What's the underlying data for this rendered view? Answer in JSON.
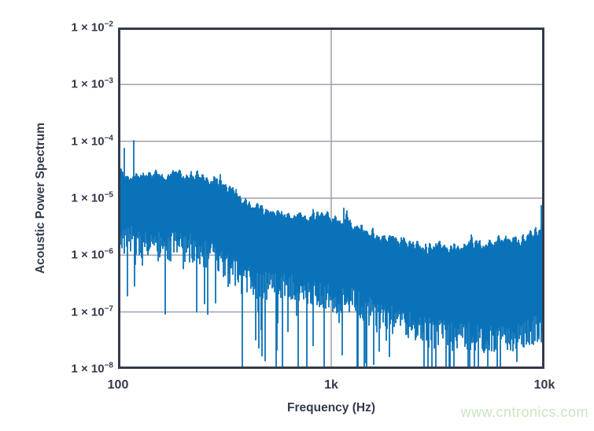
{
  "watermark": {
    "text": "www.cntronics.com",
    "color": "#c8e6c0"
  },
  "chart_data": {
    "type": "line",
    "subtype": "noisy-power-spectral-density",
    "title": "",
    "xlabel": "Frequency (Hz)",
    "ylabel": "Acoustic Power Spectrum",
    "x_scale": "log",
    "y_scale": "log",
    "x_range_hz": [
      100,
      10000
    ],
    "y_range": [
      1e-08,
      0.01
    ],
    "grid": true,
    "legend": "none",
    "series_color": "#0a72b8",
    "axis_color": "#333a4b",
    "grid_color": "#9ba1ac",
    "x_ticks": [
      {
        "value_hz": 100,
        "label": "100"
      },
      {
        "value_hz": 1000,
        "label": "1k"
      },
      {
        "value_hz": 10000,
        "label": "10k"
      }
    ],
    "y_ticks": [
      {
        "exp": -2,
        "label_base": "1 × 10",
        "label_exp": "−2"
      },
      {
        "exp": -3,
        "label_base": "1 × 10",
        "label_exp": "−3"
      },
      {
        "exp": -4,
        "label_base": "1 × 10",
        "label_exp": "−4"
      },
      {
        "exp": -5,
        "label_base": "1 × 10",
        "label_exp": "−5"
      },
      {
        "exp": -6,
        "label_base": "1 × 10",
        "label_exp": "−6"
      },
      {
        "exp": -7,
        "label_base": "1 × 10",
        "label_exp": "−7"
      },
      {
        "exp": -8,
        "label_base": "1 × 10",
        "label_exp": "−8"
      }
    ],
    "trace": {
      "description": "Dense noisy spectrum band; values are [log10(freq_hz), log10(power)] envelope control points of the band.",
      "top_envelope_log10": [
        [
          2.0,
          -4.6
        ],
        [
          2.06,
          -4.62
        ],
        [
          2.12,
          -4.58
        ],
        [
          2.2,
          -4.61
        ],
        [
          2.3,
          -4.6
        ],
        [
          2.4,
          -4.64
        ],
        [
          2.48,
          -4.72
        ],
        [
          2.56,
          -4.95
        ],
        [
          2.62,
          -5.12
        ],
        [
          2.7,
          -5.22
        ],
        [
          2.8,
          -5.3
        ],
        [
          2.9,
          -5.35
        ],
        [
          2.97,
          -5.29
        ],
        [
          3.05,
          -5.38
        ],
        [
          3.12,
          -5.52
        ],
        [
          3.22,
          -5.64
        ],
        [
          3.32,
          -5.76
        ],
        [
          3.45,
          -5.88
        ],
        [
          3.58,
          -5.84
        ],
        [
          3.7,
          -5.8
        ],
        [
          3.82,
          -5.75
        ],
        [
          3.92,
          -5.71
        ],
        [
          4.0,
          -5.5
        ]
      ],
      "bottom_envelope_log10": [
        [
          2.0,
          -5.7
        ],
        [
          2.1,
          -5.8
        ],
        [
          2.2,
          -5.85
        ],
        [
          2.3,
          -5.85
        ],
        [
          2.4,
          -5.95
        ],
        [
          2.48,
          -6.1
        ],
        [
          2.55,
          -6.35
        ],
        [
          2.62,
          -6.5
        ],
        [
          2.7,
          -6.55
        ],
        [
          2.8,
          -6.6
        ],
        [
          2.9,
          -6.7
        ],
        [
          3.0,
          -6.75
        ],
        [
          3.1,
          -6.85
        ],
        [
          3.2,
          -7.0
        ],
        [
          3.3,
          -7.15
        ],
        [
          3.4,
          -7.3
        ],
        [
          3.5,
          -7.4
        ],
        [
          3.6,
          -7.45
        ],
        [
          3.7,
          -7.45
        ],
        [
          3.8,
          -7.45
        ],
        [
          3.9,
          -7.4
        ],
        [
          4.0,
          -7.3
        ]
      ],
      "peaks": [
        {
          "f_hz": 107,
          "log10_value": -4.12
        },
        {
          "f_hz": 119,
          "log10_value": -3.98
        },
        {
          "f_hz": 1150,
          "log10_value": -5.17
        },
        {
          "f_hz": 9700,
          "log10_value": -5.12
        },
        {
          "f_hz": 9950,
          "log10_value": -5.0
        }
      ],
      "notches": [
        {
          "f_hz": 442,
          "log10_value": -7.5
        },
        {
          "f_hz": 560,
          "log10_value": -7.2
        },
        {
          "f_hz": 820,
          "log10_value": -7.6
        },
        {
          "f_hz": 1450,
          "log10_value": -7.9
        }
      ],
      "noise": {
        "seed": 42,
        "top_jitter_dec": 0.26,
        "bottom_jitter_dec": 0.55,
        "down_spike_prob": 0.12,
        "down_spike_max_dec": 1.15,
        "deep_spike_prob": 0.05,
        "up_spike_prob": 0.05,
        "up_spike_max_dec": 0.38
      }
    }
  }
}
